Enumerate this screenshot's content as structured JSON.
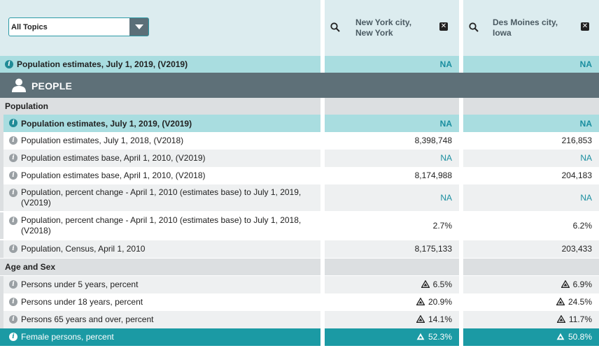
{
  "topic_select": {
    "value": "All Topics"
  },
  "locations": [
    {
      "name": "New York city, New York",
      "name_line1": "New York city,",
      "name_line2": "New York"
    },
    {
      "name": "Des Moines city, Iowa",
      "name_line1": "Des Moines city,",
      "name_line2": "Iowa"
    }
  ],
  "pinned_row": {
    "label": "Population estimates, July 1, 2019, (V2019)",
    "ny": "NA",
    "dm": "NA"
  },
  "section": {
    "title": "PEOPLE"
  },
  "groups": {
    "population": "Population",
    "age_sex": "Age and Sex"
  },
  "rows": [
    {
      "label": "Population estimates, July 1, 2019, (V2019)",
      "ny": "NA",
      "dm": "NA"
    },
    {
      "label": "Population estimates, July 1, 2018, (V2018)",
      "ny": "8,398,748",
      "dm": "216,853"
    },
    {
      "label": "Population estimates base, April 1, 2010, (V2019)",
      "ny": "NA",
      "dm": "NA"
    },
    {
      "label": "Population estimates base, April 1, 2010, (V2018)",
      "ny": "8,174,988",
      "dm": "204,183"
    },
    {
      "label_line1": "Population, percent change - April 1, 2010 (estimates base) to July 1, 2019,",
      "label_line2": "(V2019)",
      "ny": "NA",
      "dm": "NA"
    },
    {
      "label_line1": "Population, percent change - April 1, 2010 (estimates base) to July 1, 2018,",
      "label_line2": "(V2018)",
      "ny": "2.7%",
      "dm": "6.2%"
    },
    {
      "label": "Population, Census, April 1, 2010",
      "ny": "8,175,133",
      "dm": "203,433"
    },
    {
      "label": "Persons under 5 years, percent",
      "ny": "6.5%",
      "dm": "6.9%"
    },
    {
      "label": "Persons under 18 years, percent",
      "ny": "20.9%",
      "dm": "24.5%"
    },
    {
      "label": "Persons 65 years and over, percent",
      "ny": "14.1%",
      "dm": "11.7%"
    },
    {
      "label": "Female persons, percent",
      "ny": "52.3%",
      "dm": "50.8%"
    }
  ],
  "icons": {
    "info": "info-icon",
    "search": "search-icon",
    "close": "close-icon",
    "person": "person-icon",
    "flag": "flag-warning-icon",
    "dropdown": "chevron-down-icon"
  },
  "colors": {
    "teal_header": "#a9dde0",
    "teal_highlight": "#1b9aa4",
    "section_bg": "#5e7078",
    "na_text": "#1a8ea0"
  }
}
